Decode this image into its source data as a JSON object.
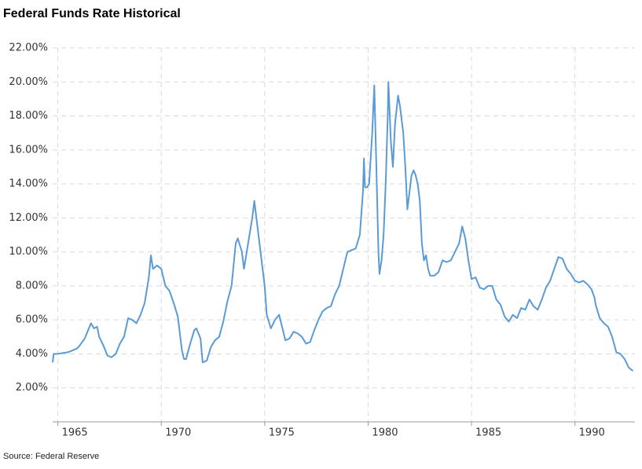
{
  "chart_data": {
    "type": "line",
    "title": "Federal Funds Rate Historical",
    "source": "Source: Federal Reserve",
    "color": "#5b9bd5",
    "grid": true,
    "xlim": [
      1964.75,
      1992.9
    ],
    "xticks": [
      1965,
      1970,
      1975,
      1980,
      1985,
      1990
    ],
    "ylim": [
      0,
      22
    ],
    "yticks": [
      {
        "value": 2,
        "label": "2.00%"
      },
      {
        "value": 4,
        "label": "4.00%"
      },
      {
        "value": 6,
        "label": "6.00%"
      },
      {
        "value": 8,
        "label": "8.00%"
      },
      {
        "value": 10,
        "label": "10.00%"
      },
      {
        "value": 12,
        "label": "12.00%"
      },
      {
        "value": 14,
        "label": "14.00%"
      },
      {
        "value": 16,
        "label": "16.00%"
      },
      {
        "value": 18,
        "label": "18.00%"
      },
      {
        "value": 20,
        "label": "20.00%"
      },
      {
        "value": 22,
        "label": "22.00%"
      }
    ],
    "x": [
      1964.75,
      1964.8,
      1965.0,
      1965.5,
      1965.9,
      1966.0,
      1966.3,
      1966.5,
      1966.6,
      1966.75,
      1966.9,
      1967.0,
      1967.2,
      1967.4,
      1967.6,
      1967.8,
      1968.0,
      1968.2,
      1968.4,
      1968.6,
      1968.8,
      1969.0,
      1969.2,
      1969.4,
      1969.5,
      1969.6,
      1969.8,
      1970.0,
      1970.2,
      1970.4,
      1970.6,
      1970.8,
      1971.0,
      1971.1,
      1971.2,
      1971.4,
      1971.6,
      1971.7,
      1971.9,
      1972.0,
      1972.2,
      1972.4,
      1972.6,
      1972.8,
      1973.0,
      1973.2,
      1973.4,
      1973.6,
      1973.7,
      1973.9,
      1974.0,
      1974.2,
      1974.4,
      1974.5,
      1974.6,
      1974.8,
      1975.0,
      1975.1,
      1975.3,
      1975.5,
      1975.7,
      1975.9,
      1976.0,
      1976.2,
      1976.4,
      1976.6,
      1976.8,
      1977.0,
      1977.2,
      1977.4,
      1977.6,
      1977.8,
      1978.0,
      1978.2,
      1978.4,
      1978.6,
      1978.8,
      1979.0,
      1979.2,
      1979.4,
      1979.6,
      1979.75,
      1979.8,
      1979.85,
      1979.95,
      1980.05,
      1980.2,
      1980.3,
      1980.4,
      1980.5,
      1980.55,
      1980.65,
      1980.75,
      1980.85,
      1980.95,
      1980.98,
      1981.05,
      1981.1,
      1981.2,
      1981.3,
      1981.45,
      1981.55,
      1981.7,
      1981.8,
      1981.9,
      1982.0,
      1982.1,
      1982.2,
      1982.3,
      1982.4,
      1982.5,
      1982.6,
      1982.7,
      1982.8,
      1982.9,
      1983.0,
      1983.2,
      1983.4,
      1983.6,
      1983.8,
      1984.0,
      1984.2,
      1984.4,
      1984.55,
      1984.7,
      1984.85,
      1985.0,
      1985.2,
      1985.4,
      1985.6,
      1985.8,
      1986.0,
      1986.2,
      1986.4,
      1986.6,
      1986.8,
      1987.0,
      1987.2,
      1987.4,
      1987.6,
      1987.8,
      1988.0,
      1988.2,
      1988.4,
      1988.6,
      1988.8,
      1989.0,
      1989.2,
      1989.4,
      1989.6,
      1989.8,
      1990.0,
      1990.2,
      1990.4,
      1990.6,
      1990.8,
      1990.95,
      1991.0,
      1991.2,
      1991.4,
      1991.6,
      1991.8,
      1992.0,
      1992.2,
      1992.4,
      1992.6,
      1992.8
    ],
    "values": [
      3.5,
      4.0,
      4.0,
      4.1,
      4.3,
      4.4,
      4.9,
      5.5,
      5.8,
      5.5,
      5.6,
      5.0,
      4.5,
      3.9,
      3.8,
      4.0,
      4.6,
      5.0,
      6.1,
      6.0,
      5.8,
      6.3,
      7.0,
      8.5,
      9.8,
      9.0,
      9.2,
      9.0,
      8.0,
      7.7,
      7.0,
      6.2,
      4.2,
      3.7,
      3.7,
      4.6,
      5.4,
      5.5,
      4.9,
      3.5,
      3.6,
      4.4,
      4.8,
      5.0,
      5.9,
      7.1,
      8.0,
      10.5,
      10.8,
      10.0,
      9.0,
      10.5,
      12.0,
      13.0,
      12.0,
      10.0,
      8.0,
      6.3,
      5.5,
      6.0,
      6.3,
      5.3,
      4.8,
      4.9,
      5.3,
      5.2,
      5.0,
      4.6,
      4.7,
      5.4,
      6.0,
      6.5,
      6.7,
      6.8,
      7.5,
      8.0,
      9.0,
      10.0,
      10.1,
      10.2,
      11.0,
      13.5,
      15.5,
      13.8,
      13.8,
      14.0,
      17.0,
      19.8,
      15.0,
      10.0,
      8.7,
      9.5,
      11.0,
      14.0,
      18.0,
      20.0,
      18.0,
      16.5,
      15.0,
      17.5,
      19.2,
      18.5,
      17.0,
      15.0,
      12.5,
      13.5,
      14.5,
      14.8,
      14.5,
      14.0,
      13.0,
      10.5,
      9.5,
      9.8,
      9.0,
      8.6,
      8.6,
      8.8,
      9.5,
      9.4,
      9.5,
      10.0,
      10.5,
      11.5,
      10.8,
      9.5,
      8.4,
      8.5,
      7.9,
      7.8,
      8.0,
      8.0,
      7.2,
      6.9,
      6.2,
      5.9,
      6.3,
      6.1,
      6.7,
      6.6,
      7.2,
      6.8,
      6.6,
      7.2,
      7.9,
      8.3,
      9.0,
      9.7,
      9.6,
      9.0,
      8.7,
      8.3,
      8.2,
      8.3,
      8.1,
      7.8,
      7.3,
      6.9,
      6.1,
      5.8,
      5.6,
      5.0,
      4.1,
      4.0,
      3.7,
      3.2,
      3.0
    ]
  }
}
